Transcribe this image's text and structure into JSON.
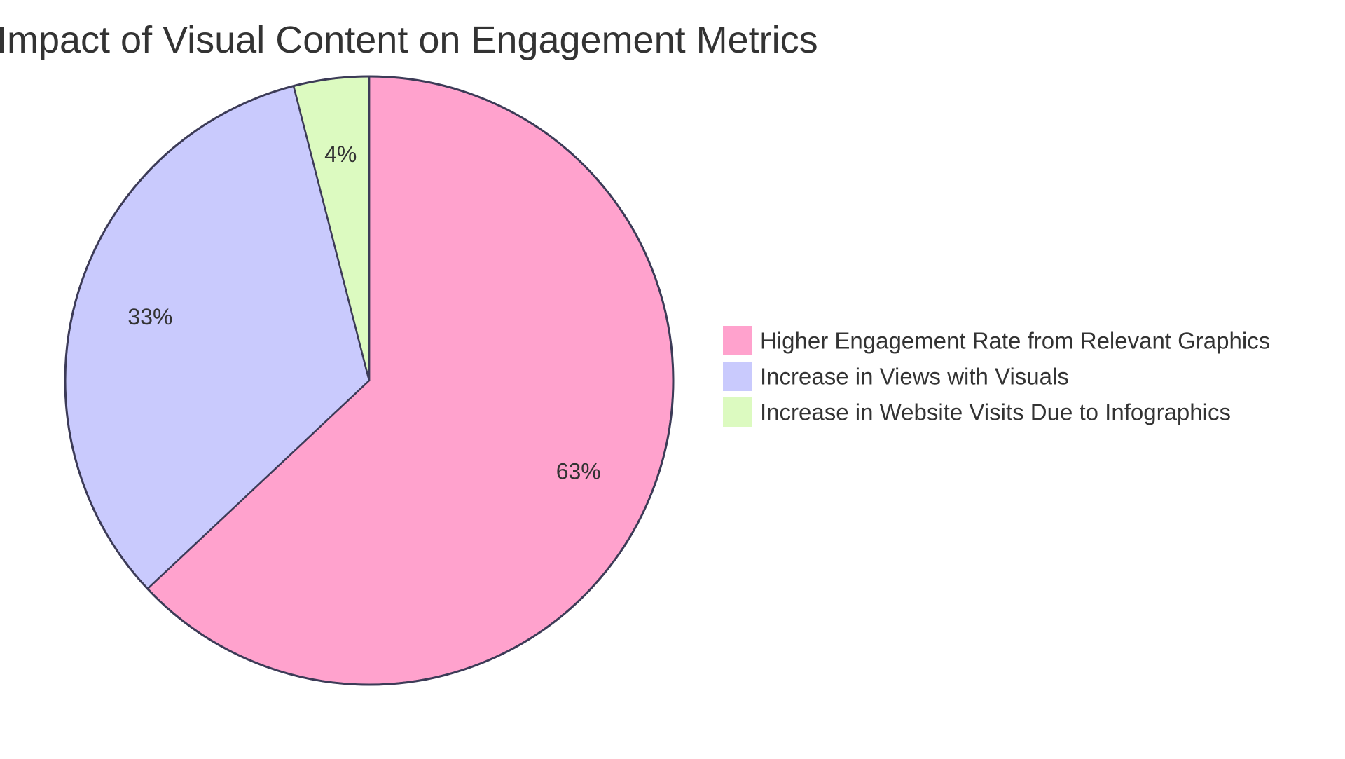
{
  "chart_data": {
    "type": "pie",
    "title": "Impact of Visual Content on Engagement Metrics",
    "slices": [
      {
        "label": "Higher Engagement Rate from Relevant Graphics",
        "value": 63,
        "display": "63%",
        "color": "#FFA2CD"
      },
      {
        "label": "Increase in Views with Visuals",
        "value": 33,
        "display": "33%",
        "color": "#C9CAFD"
      },
      {
        "label": "Increase in Website Visits Due to Infographics",
        "value": 4,
        "display": "4%",
        "color": "#DCFAC0"
      }
    ],
    "legend_position": "right",
    "stroke_color": "#3C3B57"
  }
}
